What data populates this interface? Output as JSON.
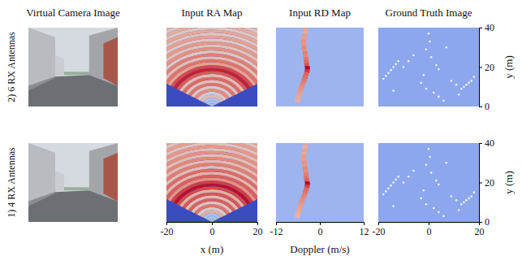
{
  "figure": {
    "column_titles": [
      "Virtual Camera Image",
      "Input RA Map",
      "Input RD Map",
      "Ground Truth Image"
    ],
    "row_labels": [
      "2) 6 RX Antennas",
      "1) 4 RX Antennas"
    ]
  },
  "chart_data": [
    {
      "type": "image"
    },
    {
      "type": "polar_heatmap",
      "xlim": [
        -20,
        20
      ],
      "ylim": [
        0,
        40
      ],
      "zlim": [
        0,
        1
      ],
      "azimuth": [
        -60,
        60
      ],
      "tick_labels": false,
      "rings": {
        "range": [
          0,
          1.5,
          3,
          4.5,
          6,
          7.5,
          9,
          10.5,
          12,
          13.5,
          15,
          16.5,
          18,
          19.5,
          21,
          22.5,
          24,
          25.5,
          27,
          28.5,
          30,
          31.5,
          33,
          34.5,
          36,
          37.5,
          39,
          40.5,
          42,
          43.5,
          45,
          46.5
        ],
        "intensity": [
          0.35,
          0.35,
          0.35,
          0.62,
          0.5,
          0.75,
          0.55,
          0.8,
          0.6,
          0.82,
          0.62,
          0.85,
          0.95,
          0.88,
          0.7,
          0.8,
          0.6,
          0.78,
          0.55,
          0.74,
          0.58,
          0.72,
          0.55,
          0.7,
          0.56,
          0.68,
          0.55,
          0.66,
          0.54,
          0.64,
          0.55
        ]
      }
    },
    {
      "type": "scatter",
      "xlim": [
        -12,
        12
      ],
      "ylim": [
        0,
        40
      ],
      "zlim": [
        0,
        1
      ],
      "background": 0.3,
      "tick_labels": false,
      "points": {
        "x": [
          -4.0,
          -4.1,
          -4.2,
          -4.4,
          -4.5,
          -4.4,
          -4.3,
          -4.2,
          -4.0,
          -3.9,
          -3.8,
          -3.7,
          -3.6,
          -3.4,
          -3.5,
          -3.7,
          -4.0,
          -4.3,
          -4.6,
          -4.9,
          -5.2,
          -5.5,
          -5.7,
          -5.9,
          -6.1
        ],
        "y": [
          39,
          37.5,
          36,
          34.5,
          33,
          31.5,
          30,
          28.5,
          27,
          25.5,
          24,
          22.5,
          21,
          19.5,
          18,
          16.5,
          15,
          13.5,
          12,
          10.5,
          9,
          7.5,
          6,
          4.5,
          3
        ],
        "intensity": [
          0.7,
          0.68,
          0.72,
          0.7,
          0.74,
          0.72,
          0.76,
          0.74,
          0.78,
          0.76,
          0.8,
          0.82,
          0.86,
          1.0,
          0.92,
          0.84,
          0.82,
          0.8,
          0.78,
          0.76,
          0.74,
          0.72,
          0.7,
          0.68,
          0.66
        ]
      }
    },
    {
      "type": "scatter",
      "xlim": [
        -20,
        20
      ],
      "ylim": [
        0,
        40
      ],
      "zlim": [
        0,
        1
      ],
      "background": 0.25,
      "color": "#eef2f8",
      "tick_labels": "y",
      "yticks": [
        0,
        20,
        40
      ],
      "ylabel": "y (m)",
      "points": {
        "x": [
          -18,
          -17,
          -16,
          -15,
          -14,
          -13,
          -12,
          0,
          0.5,
          -1,
          1,
          3,
          4,
          -2,
          -3,
          -1,
          2,
          4,
          6,
          9,
          11,
          13,
          14,
          15,
          16,
          17,
          12,
          18,
          -8,
          -10,
          -6,
          7,
          -14
        ],
        "y": [
          14,
          15.5,
          17,
          18.5,
          20,
          21.5,
          23,
          37,
          33,
          29,
          25,
          21,
          19,
          16,
          12,
          9,
          7,
          5,
          3,
          13,
          11,
          9,
          10,
          11,
          12,
          13,
          6,
          15,
          23,
          20,
          26,
          30,
          8
        ]
      }
    },
    {
      "type": "image"
    },
    {
      "type": "polar_heatmap",
      "xlim": [
        -20,
        20
      ],
      "ylim": [
        0,
        40
      ],
      "zlim": [
        0,
        1
      ],
      "azimuth": [
        -60,
        60
      ],
      "tick_labels": "x",
      "xticks": [
        -20,
        0,
        20
      ],
      "xlabel": "x (m)",
      "rings": {
        "range": [
          0,
          1.5,
          3,
          4.5,
          6,
          7.5,
          9,
          10.5,
          12,
          13.5,
          15,
          16.5,
          18,
          19.5,
          21,
          22.5,
          24,
          25.5,
          27,
          28.5,
          30,
          31.5,
          33,
          34.5,
          36,
          37.5,
          39,
          40.5,
          42,
          43.5,
          45,
          46.5
        ],
        "intensity": [
          0.35,
          0.35,
          0.35,
          0.66,
          0.52,
          0.8,
          0.58,
          0.84,
          0.62,
          0.86,
          0.66,
          0.88,
          0.98,
          0.9,
          0.74,
          0.84,
          0.64,
          0.82,
          0.6,
          0.78,
          0.62,
          0.76,
          0.6,
          0.74,
          0.6,
          0.72,
          0.58,
          0.7,
          0.58,
          0.68,
          0.6
        ]
      }
    },
    {
      "type": "scatter",
      "xlim": [
        -12,
        12
      ],
      "ylim": [
        0,
        40
      ],
      "zlim": [
        0,
        1
      ],
      "background": 0.3,
      "tick_labels": "x",
      "xticks": [
        -12,
        0,
        12
      ],
      "xlabel": "Doppler (m/s)",
      "points": {
        "x": [
          -4.0,
          -4.1,
          -4.2,
          -4.4,
          -4.5,
          -4.4,
          -4.3,
          -4.2,
          -4.0,
          -3.9,
          -3.8,
          -3.7,
          -3.6,
          -3.4,
          -3.5,
          -3.7,
          -4.0,
          -4.3,
          -4.6,
          -4.9,
          -5.2,
          -5.5,
          -5.7,
          -5.9,
          -6.1
        ],
        "y": [
          39,
          37.5,
          36,
          34.5,
          33,
          31.5,
          30,
          28.5,
          27,
          25.5,
          24,
          22.5,
          21,
          19.5,
          18,
          16.5,
          15,
          13.5,
          12,
          10.5,
          9,
          7.5,
          6,
          4.5,
          3
        ],
        "intensity": [
          0.68,
          0.66,
          0.7,
          0.68,
          0.72,
          0.7,
          0.74,
          0.72,
          0.76,
          0.74,
          0.78,
          0.8,
          0.84,
          1.0,
          0.9,
          0.82,
          0.8,
          0.78,
          0.76,
          0.74,
          0.72,
          0.7,
          0.68,
          0.66,
          0.64
        ]
      }
    },
    {
      "type": "scatter",
      "xlim": [
        -20,
        20
      ],
      "ylim": [
        0,
        40
      ],
      "zlim": [
        0,
        1
      ],
      "background": 0.25,
      "color": "#eef2f8",
      "tick_labels": true,
      "xticks": [
        -20,
        0,
        20
      ],
      "yticks": [
        0,
        20,
        40
      ],
      "ylabel": "y (m)",
      "points": {
        "x": [
          -18,
          -17,
          -16,
          -15,
          -14,
          -13,
          -12,
          0,
          0.5,
          -1,
          1,
          3,
          4,
          -2,
          -3,
          -1,
          2,
          4,
          6,
          9,
          11,
          13,
          14,
          15,
          16,
          17,
          12,
          18,
          -8,
          -10,
          -6,
          7,
          -14
        ],
        "y": [
          14,
          15.5,
          17,
          18.5,
          20,
          21.5,
          23,
          37,
          33,
          29,
          25,
          21,
          19,
          16,
          12,
          9,
          7,
          5,
          3,
          13,
          11,
          9,
          10,
          11,
          12,
          13,
          6,
          15,
          23,
          20,
          26,
          30,
          8
        ]
      }
    }
  ]
}
